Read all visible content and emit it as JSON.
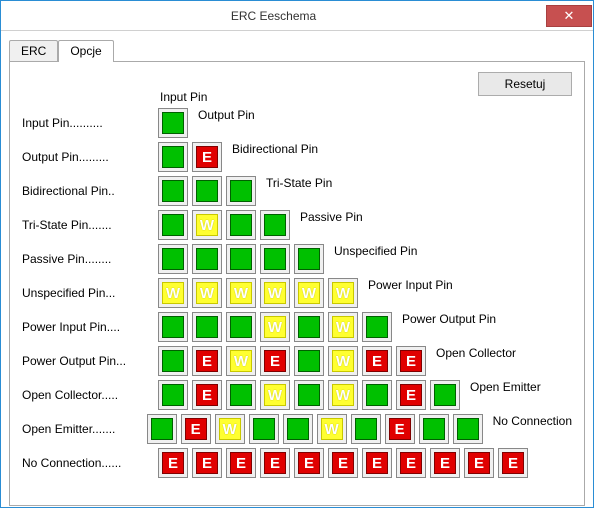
{
  "window": {
    "title": "ERC Eeschema"
  },
  "tabs": [
    {
      "label": "ERC",
      "active": false
    },
    {
      "label": "Opcje",
      "active": true
    }
  ],
  "reset_label": "Resetuj",
  "first_col_label": "Input Pin",
  "pins": [
    {
      "row": "Input Pin..........",
      "col": "Output Pin"
    },
    {
      "row": "Output Pin.........",
      "col": "Bidirectional Pin"
    },
    {
      "row": "Bidirectional Pin..",
      "col": "Tri-State Pin"
    },
    {
      "row": "Tri-State Pin.......",
      "col": "Passive Pin"
    },
    {
      "row": "Passive Pin........",
      "col": "Unspecified Pin"
    },
    {
      "row": "Unspecified Pin...",
      "col": "Power Input Pin"
    },
    {
      "row": "Power Input Pin....",
      "col": "Power Output Pin"
    },
    {
      "row": "Power Output Pin...",
      "col": "Open Collector"
    },
    {
      "row": "Open Collector.....",
      "col": "Open Emitter"
    },
    {
      "row": "Open Emitter.......",
      "col": "No Connection"
    },
    {
      "row": "No Connection......",
      "col": ""
    }
  ],
  "matrix": [
    [
      "ok"
    ],
    [
      "ok",
      "err"
    ],
    [
      "ok",
      "ok",
      "ok"
    ],
    [
      "ok",
      "warn",
      "ok",
      "ok"
    ],
    [
      "ok",
      "ok",
      "ok",
      "ok",
      "ok"
    ],
    [
      "warn",
      "warn",
      "warn",
      "warn",
      "warn",
      "warn"
    ],
    [
      "ok",
      "ok",
      "ok",
      "warn",
      "ok",
      "warn",
      "ok"
    ],
    [
      "ok",
      "err",
      "warn",
      "err",
      "ok",
      "warn",
      "err",
      "err"
    ],
    [
      "ok",
      "err",
      "ok",
      "warn",
      "ok",
      "warn",
      "ok",
      "err",
      "ok"
    ],
    [
      "ok",
      "err",
      "warn",
      "ok",
      "ok",
      "warn",
      "ok",
      "err",
      "ok",
      "ok"
    ],
    [
      "err",
      "err",
      "err",
      "err",
      "err",
      "err",
      "err",
      "err",
      "err",
      "err",
      "err"
    ]
  ],
  "glyphs": {
    "ok": "",
    "warn": "W",
    "err": "E"
  },
  "colors": {
    "ok_bg": "#00c000",
    "ok_border": "#006000",
    "warn_bg": "#ffff30",
    "warn_border": "#c8c800",
    "err_bg": "#e00000",
    "err_border": "#800000",
    "cell_frame": "#888888",
    "close_bg": "#c75050",
    "window_border": "#2a8dd4"
  }
}
